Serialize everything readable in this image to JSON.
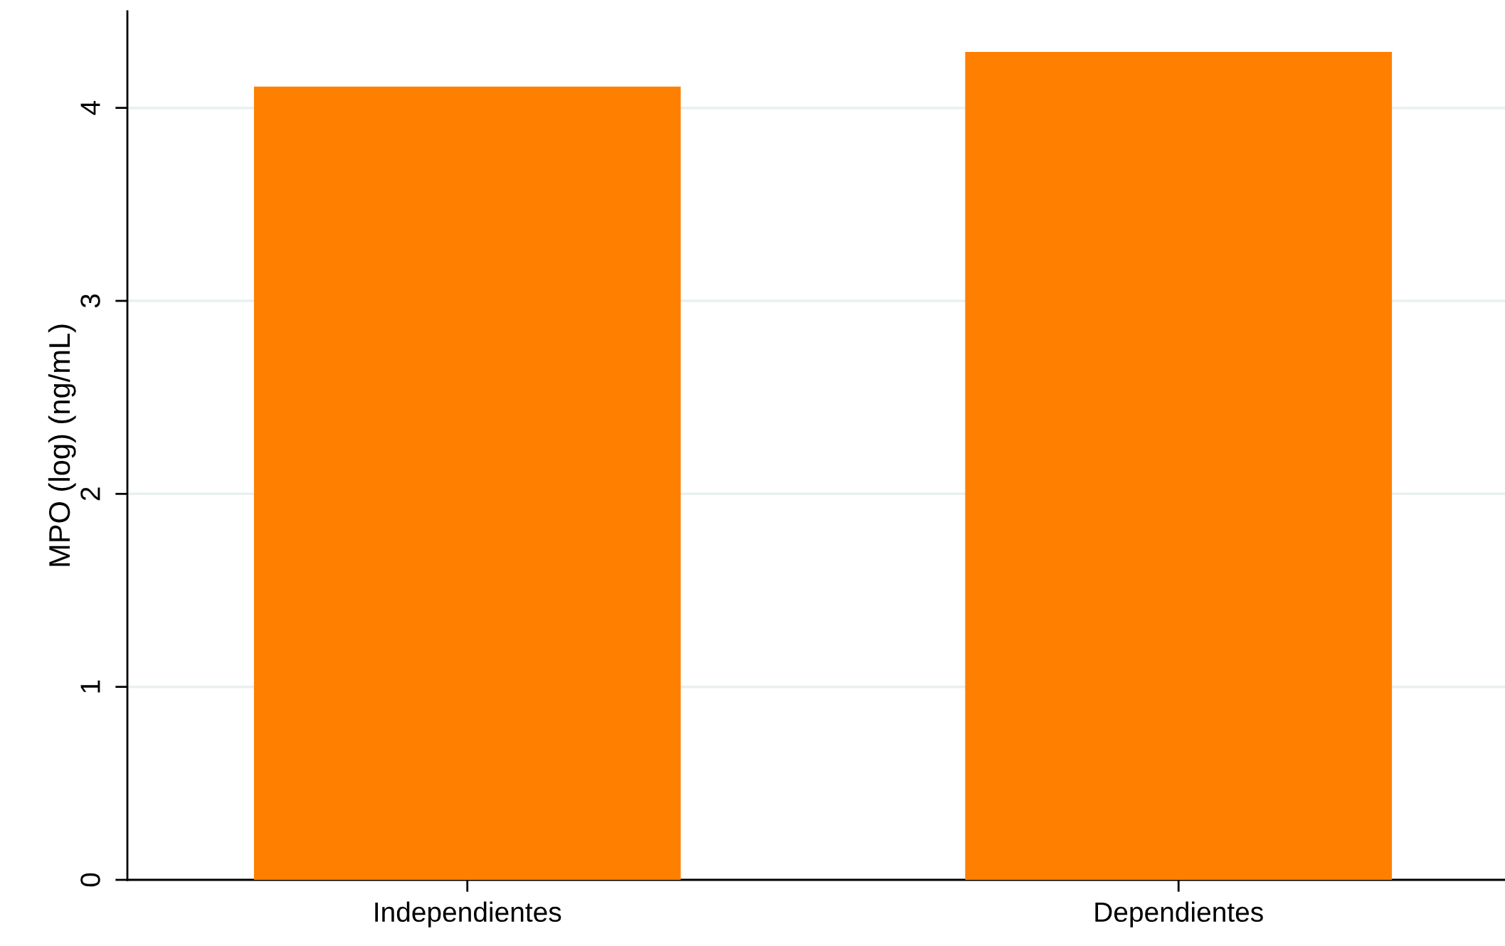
{
  "chart_data": {
    "type": "bar",
    "ylabel": "MPO (log) (ng/mL)",
    "categories": [
      "Independientes",
      "Dependientes"
    ],
    "values": [
      4.11,
      4.29
    ],
    "color": "#ff7f00",
    "ylim": [
      0,
      4.5
    ],
    "yticks": [
      0,
      1,
      2,
      3,
      4
    ],
    "grid": "y"
  }
}
